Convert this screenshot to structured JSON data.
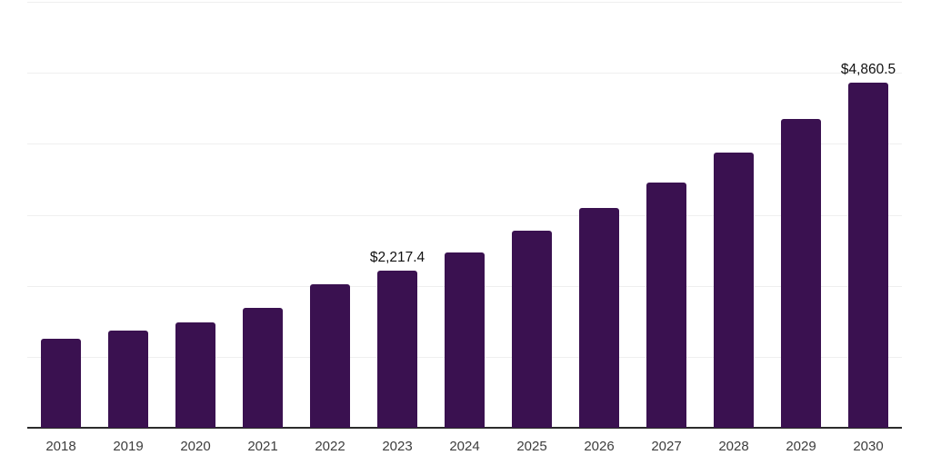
{
  "chart": {
    "background_color": "#ffffff",
    "bar_color": "#3A1150",
    "axis_line_color": "#2b2b2b",
    "gridline_color": "#efefef",
    "tick_label_color": "#3d3d3d",
    "value_label_color": "#111111"
  },
  "chart_data": {
    "type": "bar",
    "title": "",
    "xlabel": "",
    "ylabel": "",
    "categories": [
      "2018",
      "2019",
      "2020",
      "2021",
      "2022",
      "2023",
      "2024",
      "2025",
      "2026",
      "2027",
      "2028",
      "2029",
      "2030"
    ],
    "values": [
      1250,
      1375,
      1490,
      1695,
      2025,
      2217.4,
      2475,
      2780,
      3095,
      3460,
      3875,
      4350,
      4860.5
    ],
    "value_labels": {
      "2023": "$2,217.4",
      "2030": "$4,860.5"
    },
    "ylim": [
      0,
      6000
    ],
    "gridline_step": 1000,
    "grid": true,
    "legend": false,
    "y_axis_labels_visible": false
  }
}
